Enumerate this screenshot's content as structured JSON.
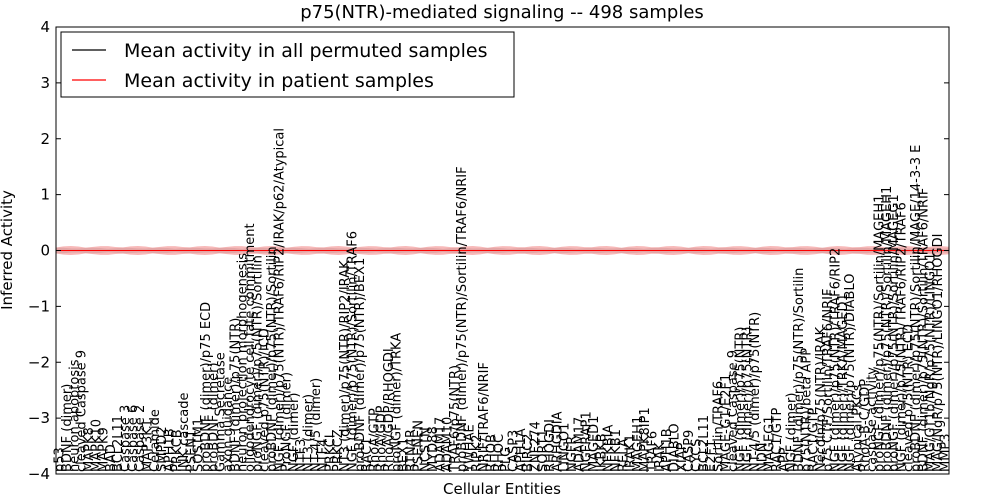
{
  "chart_data": {
    "type": "line",
    "title": "p75(NTR)-mediated signaling -- 498 samples",
    "xlabel": "Cellular Entities",
    "ylabel": "Inferred Activity",
    "ylim": [
      -4,
      4
    ],
    "yticks": [
      "−4",
      "−3",
      "−2",
      "−1",
      "0",
      "1",
      "2",
      "3",
      "4"
    ],
    "grid": false,
    "legend_position": "top-left",
    "colors": {
      "permuted": "#000000",
      "patient": "#ff0000",
      "permuted_band": "#bbbbbb",
      "patient_band": "#f08080"
    },
    "series": [
      {
        "name": "Mean activity in all permuted samples",
        "mean": 0.0,
        "band": 0.05
      },
      {
        "name": "Mean activity in patient samples",
        "mean": 0.0,
        "band": 0.08
      }
    ],
    "categories": [
      "p53",
      "BDNF (dimer)",
      "neuron apoptosis",
      "cleaved Caspase 9",
      "MAPK8",
      "MAPK10",
      "MAPK9",
      "BAD",
      "BCL2L11",
      "Caspase 3",
      "Caspase 6",
      "Caspase 2",
      "MAP3K1",
      "Ceramide",
      "SMPD2",
      "APH1B",
      "PRKCB",
      "JNK cascade",
      "PSEN1",
      "SQSTM1",
      "proBDNF (dimer)/p75 ECD",
      "proBDNF (dimer)",
      "Gamma Secretase",
      "axon guidance",
      "BDNF (dimer)/p75(NTR)",
      "neuron projection morphogenesis",
      "oligodendrocyte cell fate commitment",
      "proNGF (dimer)/p75(NTR)/Sortilin",
      "cleaved p75(NTR)/ICD",
      "proBDNF (dimer)/p75(NTR)/Sortilin",
      "NGF (dimer)/p75(NTR)/TRAF6/RIP2/IRAK/p62/Atypical",
      "ProNGF (dimer)",
      "NGF (dimer)",
      "NTF3",
      "NT3 (dimer)",
      "NT-4/5 (dimer)",
      "NTF4",
      "PRKCI",
      "PRKCZ",
      "NT3 (dimer)/p75(NTR)/RIP2/IRAK",
      "NGF (dimer)/p75(NTR)/Sortilin/TRAF6",
      "proBDNF (dimer)/p75(NTR)/BEX1",
      "RAC1",
      "RhoA/GTP",
      "RhoA/GDP",
      "RhoA/GDP/RHOGDI",
      "proNGF (dimer)/TRKA",
      "BEX1",
      "RTN4R",
      "PSENEN",
      "NCSTN",
      "MYD88",
      "ADAM17",
      "ADAM10",
      "TRAF6/p75(NTR)",
      "proBDNF (dimer)/p75(NTR)/Sortilin/TRAF6/NRIF",
      "YWHAE",
      "RIPK2",
      "NRIF/TRAF6/NRIF",
      "RHOB",
      "RHOC",
      "PLG",
      "CASP3",
      "APH1A",
      "BIRC2",
      "ZNF274",
      "SORT1",
      "RHOGDI",
      "ARHGDIA",
      "LINGO1",
      "NGFR",
      "ADAM17",
      "NGFRAP1",
      "MAGED1",
      "IKBKB",
      "NFKBIA",
      "NFKB1",
      "RELA",
      "IRAK1",
      "MAGEH1",
      "MAPK8IP1",
      "TRAF6",
      "IRAK",
      "APH1B",
      "DIABLO",
      "XIAP",
      "CASP9",
      "CYCS",
      "BCL2L11",
      "E2F1",
      "Sortilin/TRAF6",
      "MAGE-G1/E2F1",
      "cleaved Caspase 9",
      "NGF (dimer)/p75(NTR)",
      "NGF (dimer)/p75(NTR)",
      "NT-4/5 (dimer)/p75(NTR)",
      "NDN",
      "MAGEG1",
      "RAC1/GTP",
      "APP",
      "NGF (dimer)",
      "BDNF (dimer)/p75(NTR)/Sortilin",
      "p75(NTR)/beta APP",
      "RAC1/GTP",
      "Necdin/p75(NTR)/IRAK",
      "p75 CTF/Sortilin/TRAF6/NRIF",
      "NGF (dimer)/p75(NTR)/TRAF6/RIP2",
      "NGF (dimer)/TRKA/MAGED1",
      "NGF (dimer)/p75(NTR)/DIABLO",
      "Atypical PKCs",
      "RhoA-B-C/GDP",
      "caspase activity",
      "proNGF (dimer)/p75(NTR)/Sortilin/MAGEH1",
      "proBDNF (dimer)/p75(NTR)/Sortilin/MAGEH1",
      "proNGF (dimer)/p75(NTR)/Sortilin/MAGEG1",
      "NGF (dimer)/p75(NTR)/TRAF6/RIP2/TRAF6",
      "cleaved p75(NTR) ECD",
      "proBDNF (dimer)/p75(NTR)/Sortilin/MAGE/14-3-3 E",
      "BDNF (dimer)/p75(NTR)/Sortilin/TRAF6/NRIF",
      "MAG/GT1b/NgR/p75(NTR)/LINGO1",
      "MAG/NgR/p75(NTR)/LINGO1/RHOGDI",
      "MMP3"
    ]
  }
}
